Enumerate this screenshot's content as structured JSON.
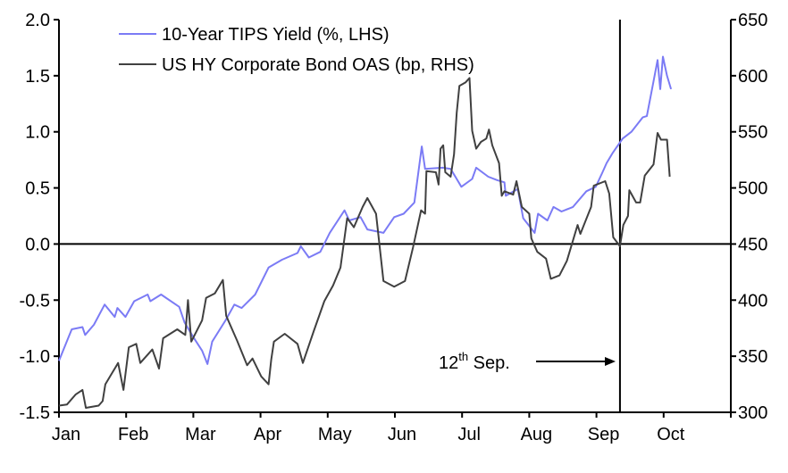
{
  "chart_data": {
    "type": "line",
    "title": "",
    "x_unit": "months since 1 Jan (0 = Jan)",
    "x_tick_labels": [
      "Jan",
      "Feb",
      "Mar",
      "Apr",
      "May",
      "Jun",
      "Jul",
      "Aug",
      "Sep",
      "Oct"
    ],
    "xlim": [
      0,
      10
    ],
    "y_left": {
      "ylim": [
        -1.5,
        2.0
      ],
      "ticks": [
        "2.0",
        "1.5",
        "1.0",
        "0.5",
        "0.0",
        "-0.5",
        "-1.0",
        "-1.5"
      ],
      "tick_values": [
        2.0,
        1.5,
        1.0,
        0.5,
        0.0,
        -0.5,
        -1.0,
        -1.5
      ]
    },
    "y_right": {
      "ylim": [
        300,
        650
      ],
      "ticks": [
        "650",
        "600",
        "550",
        "500",
        "450",
        "400",
        "350",
        "300"
      ],
      "tick_values": [
        650,
        600,
        550,
        500,
        450,
        400,
        350,
        300
      ]
    },
    "series": [
      {
        "name": "10-Year TIPS Yield (%, LHS)",
        "axis": "left",
        "color": "#7b7bf5",
        "x": [
          0.0,
          0.19,
          0.35,
          0.39,
          0.52,
          0.68,
          0.83,
          0.87,
          0.99,
          1.12,
          1.32,
          1.36,
          1.52,
          1.79,
          1.87,
          2.0,
          2.13,
          2.21,
          2.28,
          2.48,
          2.61,
          2.72,
          2.92,
          3.12,
          3.32,
          3.55,
          3.6,
          3.72,
          3.89,
          4.03,
          4.25,
          4.32,
          4.49,
          4.59,
          4.83,
          4.99,
          5.13,
          5.29,
          5.4,
          5.45,
          5.71,
          5.83,
          5.99,
          6.15,
          6.21,
          6.39,
          6.52,
          6.63,
          6.65,
          6.83,
          6.91,
          7.08,
          7.13,
          7.27,
          7.36,
          7.48,
          7.65,
          7.85,
          7.99,
          8.09,
          8.15,
          8.24,
          8.39,
          8.52,
          8.69,
          8.75,
          8.85,
          8.91,
          8.95,
          8.99,
          9.05,
          9.11
        ],
        "y": [
          -1.04,
          -0.76,
          -0.74,
          -0.81,
          -0.72,
          -0.54,
          -0.65,
          -0.57,
          -0.65,
          -0.51,
          -0.45,
          -0.51,
          -0.45,
          -0.56,
          -0.7,
          -0.83,
          -0.95,
          -1.07,
          -0.87,
          -0.68,
          -0.54,
          -0.57,
          -0.45,
          -0.21,
          -0.14,
          -0.08,
          -0.02,
          -0.12,
          -0.07,
          0.1,
          0.3,
          0.21,
          0.24,
          0.13,
          0.1,
          0.24,
          0.27,
          0.37,
          0.87,
          0.67,
          0.68,
          0.67,
          0.51,
          0.58,
          0.68,
          0.6,
          0.57,
          0.55,
          0.43,
          0.49,
          0.23,
          0.1,
          0.27,
          0.21,
          0.33,
          0.29,
          0.33,
          0.47,
          0.51,
          0.64,
          0.72,
          0.81,
          0.94,
          1.0,
          1.13,
          1.14,
          1.45,
          1.64,
          1.38,
          1.67,
          1.5,
          1.38
        ]
      },
      {
        "name": "US HY Corporate Bond OAS (bp, RHS)",
        "axis": "right",
        "color": "#404040",
        "x": [
          0.0,
          0.12,
          0.25,
          0.35,
          0.4,
          0.59,
          0.65,
          0.69,
          0.88,
          0.96,
          1.04,
          1.15,
          1.21,
          1.39,
          1.49,
          1.55,
          1.76,
          1.88,
          1.92,
          1.97,
          2.13,
          2.19,
          2.32,
          2.44,
          2.49,
          2.65,
          2.8,
          2.88,
          3.01,
          3.12,
          3.16,
          3.2,
          3.36,
          3.55,
          3.63,
          3.79,
          3.95,
          4.08,
          4.19,
          4.29,
          4.39,
          4.52,
          4.59,
          4.72,
          4.83,
          4.99,
          5.15,
          5.27,
          5.39,
          5.45,
          5.47,
          5.61,
          5.65,
          5.68,
          5.72,
          5.75,
          5.83,
          5.88,
          5.92,
          5.96,
          6.05,
          6.11,
          6.15,
          6.21,
          6.28,
          6.36,
          6.4,
          6.45,
          6.55,
          6.59,
          6.63,
          6.76,
          6.81,
          6.89,
          7.0,
          7.03,
          7.12,
          7.25,
          7.32,
          7.45,
          7.56,
          7.72,
          7.76,
          7.92,
          7.96,
          8.13,
          8.19,
          8.25,
          8.35,
          8.4,
          8.47,
          8.49,
          8.59,
          8.65,
          8.72,
          8.85,
          8.91,
          8.96,
          9.05,
          9.09
        ],
        "y": [
          306,
          307,
          316,
          320,
          304,
          306,
          310,
          325,
          344,
          320,
          358,
          361,
          344,
          356,
          339,
          366,
          374,
          369,
          400,
          363,
          382,
          402,
          406,
          418,
          386,
          364,
          342,
          348,
          332,
          325,
          347,
          363,
          370,
          361,
          344,
          372,
          399,
          413,
          429,
          473,
          465,
          483,
          491,
          477,
          417,
          412,
          417,
          447,
          480,
          477,
          515,
          514,
          503,
          535,
          538,
          514,
          510,
          530,
          567,
          591,
          594,
          598,
          551,
          535,
          541,
          544,
          552,
          538,
          522,
          493,
          497,
          494,
          506,
          483,
          477,
          455,
          443,
          437,
          419,
          422,
          435,
          467,
          459,
          483,
          502,
          506,
          495,
          456,
          448,
          467,
          475,
          498,
          487,
          487,
          511,
          521,
          549,
          543,
          543,
          510
        ]
      }
    ],
    "legend_placement": "top-left",
    "reference_lines": [
      {
        "axis": "y_left",
        "value": 0.0
      },
      {
        "axis": "x",
        "value": 8.35
      }
    ],
    "annotations": [
      {
        "text_main": "12",
        "text_sup": "th",
        "text_rest": " Sep.",
        "points_to_x": 8.35
      }
    ]
  }
}
